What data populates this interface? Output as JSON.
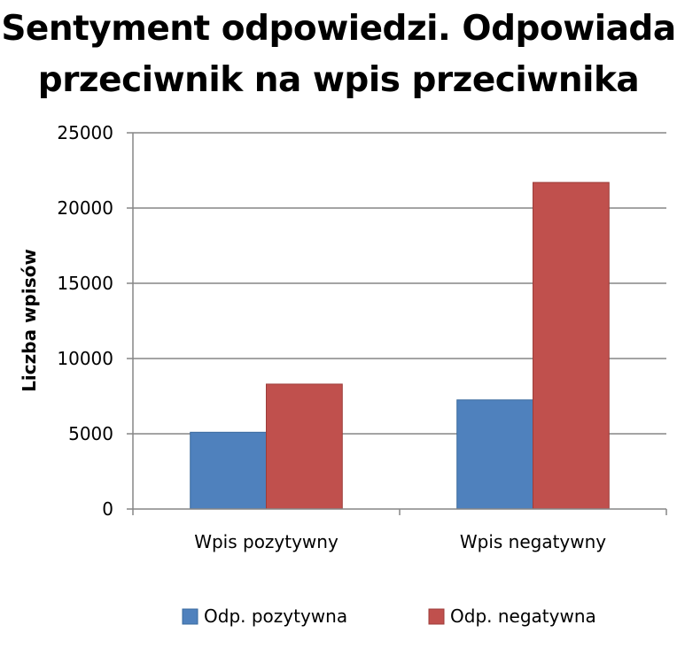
{
  "chart_data": {
    "type": "bar",
    "title": "Sentyment odpowiedzi. Odpowiada przeciwnik na wpis przeciwnika",
    "xlabel": "",
    "ylabel": "Liczba wpisów",
    "categories": [
      "Wpis pozytywny",
      "Wpis negatywny"
    ],
    "series": [
      {
        "name": "Odp. pozytywna",
        "values": [
          5100,
          7250
        ],
        "color": "#4f81bd"
      },
      {
        "name": "Odp. negatywna",
        "values": [
          8300,
          21700
        ],
        "color": "#c0504d"
      }
    ],
    "ylim": [
      0,
      25000
    ],
    "yticks": [
      0,
      5000,
      10000,
      15000,
      20000,
      25000
    ],
    "grid": true,
    "legend": "bottom"
  }
}
